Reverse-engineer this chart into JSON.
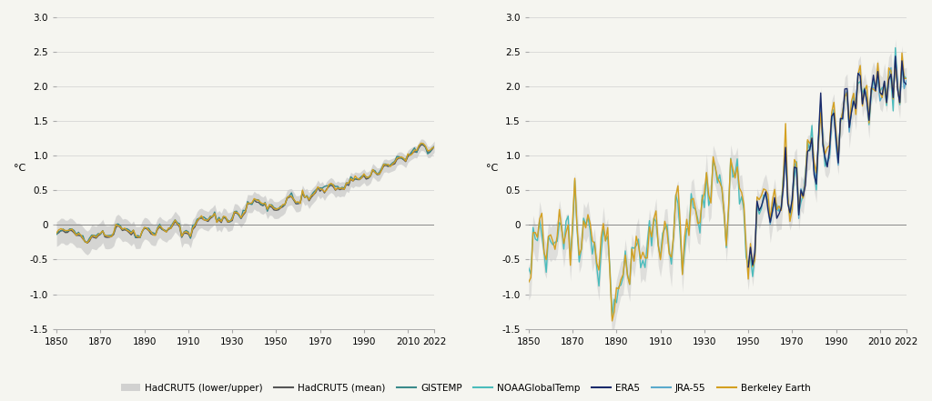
{
  "xlim": [
    1850,
    2022
  ],
  "ylim": [
    -1.5,
    3.0
  ],
  "yticks": [
    -1.5,
    -1.0,
    -0.5,
    0.0,
    0.5,
    1.0,
    1.5,
    2.0,
    2.5,
    3.0
  ],
  "xticks": [
    1850,
    1870,
    1890,
    1910,
    1930,
    1950,
    1970,
    1990,
    2010,
    2022
  ],
  "ylabel": "°C",
  "bg_color": "#f5f5f0",
  "grid_color": "#d0d0d0",
  "zero_line_color": "#888888",
  "hadcrut5_band_color": "#c8c8c8",
  "hadcrut5_mean_color": "#555555",
  "gistemp_color": "#3a8a8a",
  "noaa_color": "#4abcbc",
  "era5_color": "#1a2a6a",
  "jra55_color": "#5aaacc",
  "berkeley_color": "#d4a020",
  "lw_main": 1.0,
  "lw_thin": 0.8
}
